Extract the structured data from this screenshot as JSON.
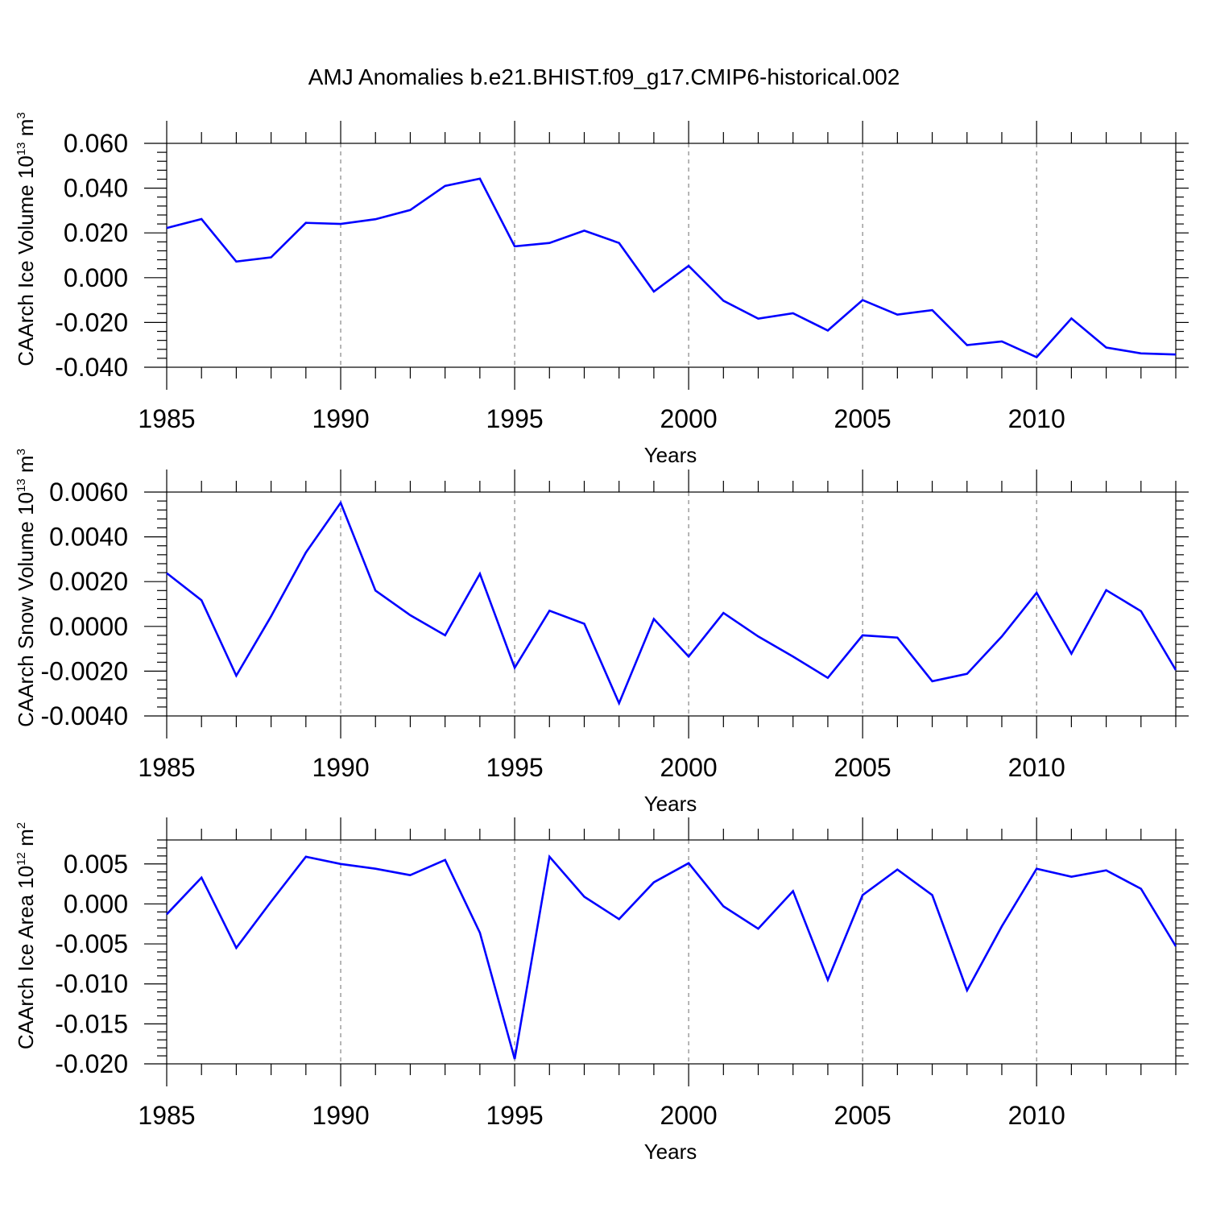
{
  "title": "AMJ Anomalies b.e21.BHIST.f09_g17.CMIP6-historical.002",
  "colors": {
    "series": "#0000ff",
    "frame": "#000000",
    "grid": "#7a7a7a"
  },
  "chart_data": [
    {
      "type": "line",
      "xlabel": "Years",
      "ylabel": {
        "text": "CAArch Ice Volume 10",
        "sup1": "13",
        "mid": " m",
        "sup2": "3"
      },
      "xlim": [
        1985,
        2014
      ],
      "ylim": [
        -0.04,
        0.06
      ],
      "xticks": [
        1985,
        1990,
        1995,
        2000,
        2005,
        2010
      ],
      "xtick_labels": [
        "1985",
        "1990",
        "1995",
        "2000",
        "2005",
        "2010"
      ],
      "yticks": [
        0.06,
        0.04,
        0.02,
        0.0,
        -0.02,
        -0.04
      ],
      "ytick_labels": [
        "0.060",
        "0.040",
        "0.020",
        "0.000",
        "-0.020",
        "-0.040"
      ],
      "grid": "vertical dashed at labeled years",
      "x": [
        1985,
        1986,
        1987,
        1988,
        1989,
        1990,
        1991,
        1992,
        1993,
        1994,
        1995,
        1996,
        1997,
        1998,
        1999,
        2000,
        2001,
        2002,
        2003,
        2004,
        2005,
        2006,
        2007,
        2008,
        2009,
        2010,
        2011,
        2012,
        2013,
        2014
      ],
      "values": [
        0.0222,
        0.0262,
        0.0072,
        0.0091,
        0.0245,
        0.024,
        0.0261,
        0.0302,
        0.041,
        0.0442,
        0.014,
        0.0155,
        0.021,
        0.0155,
        -0.0062,
        0.0053,
        -0.0103,
        -0.0183,
        -0.0159,
        -0.0236,
        -0.01,
        -0.0165,
        -0.0145,
        -0.0301,
        -0.0285,
        -0.0355,
        -0.0182,
        -0.0312,
        -0.0338,
        -0.0343
      ]
    },
    {
      "type": "line",
      "xlabel": "Years",
      "ylabel": {
        "text": "CAArch Snow Volume 10",
        "sup1": "13",
        "mid": " m",
        "sup2": "3"
      },
      "xlim": [
        1985,
        2014
      ],
      "ylim": [
        -0.004,
        0.006
      ],
      "xticks": [
        1985,
        1990,
        1995,
        2000,
        2005,
        2010
      ],
      "xtick_labels": [
        "1985",
        "1990",
        "1995",
        "2000",
        "2005",
        "2010"
      ],
      "yticks": [
        0.006,
        0.004,
        0.002,
        0.0,
        -0.002,
        -0.004
      ],
      "ytick_labels": [
        "0.0060",
        "0.0040",
        "0.0020",
        "0.0000",
        "-0.0020",
        "-0.0040"
      ],
      "grid": "vertical dashed at labeled years",
      "x": [
        1985,
        1986,
        1987,
        1988,
        1989,
        1990,
        1991,
        1992,
        1993,
        1994,
        1995,
        1996,
        1997,
        1998,
        1999,
        2000,
        2001,
        2002,
        2003,
        2004,
        2005,
        2006,
        2007,
        2008,
        2009,
        2010,
        2011,
        2012,
        2013,
        2014
      ],
      "values": [
        0.00238,
        0.00117,
        -0.0022,
        0.00045,
        0.0033,
        0.00552,
        0.0016,
        0.0005,
        -0.0004,
        0.00235,
        -0.00185,
        0.0007,
        0.00012,
        -0.00343,
        0.00033,
        -0.00135,
        0.0006,
        -0.00045,
        -0.00135,
        -0.0023,
        -0.0004,
        -0.0005,
        -0.00245,
        -0.00212,
        -0.00045,
        0.0015,
        -0.00122,
        0.00162,
        0.00068,
        -0.00195
      ]
    },
    {
      "type": "line",
      "xlabel": "Years",
      "ylabel": {
        "text": "CAArch Ice Area 10",
        "sup1": "12",
        "mid": " m",
        "sup2": "2"
      },
      "xlim": [
        1985,
        2014
      ],
      "ylim": [
        -0.02,
        0.008
      ],
      "xticks": [
        1985,
        1990,
        1995,
        2000,
        2005,
        2010
      ],
      "xtick_labels": [
        "1985",
        "1990",
        "1995",
        "2000",
        "2005",
        "2010"
      ],
      "yticks": [
        0.005,
        0.0,
        -0.005,
        -0.01,
        -0.015,
        -0.02
      ],
      "ytick_labels": [
        "0.005",
        "0.000",
        "-0.005",
        "-0.010",
        "-0.015",
        "-0.020"
      ],
      "grid": "vertical dashed at labeled years",
      "x": [
        1985,
        1986,
        1987,
        1988,
        1989,
        1990,
        1991,
        1992,
        1993,
        1994,
        1995,
        1996,
        1997,
        1998,
        1999,
        2000,
        2001,
        2002,
        2003,
        2004,
        2005,
        2006,
        2007,
        2008,
        2009,
        2010,
        2011,
        2012,
        2013,
        2014
      ],
      "values": [
        -0.0013,
        0.0033,
        -0.0055,
        0.0003,
        0.0059,
        0.005,
        0.0044,
        0.0036,
        0.0055,
        -0.0036,
        -0.0194,
        0.0059,
        0.0009,
        -0.0019,
        0.0027,
        0.0051,
        -0.0003,
        -0.0031,
        0.0016,
        -0.0095,
        0.0011,
        0.0043,
        0.0011,
        -0.0108,
        -0.0028,
        0.0044,
        0.0034,
        0.0042,
        0.0019,
        -0.0053
      ]
    }
  ]
}
